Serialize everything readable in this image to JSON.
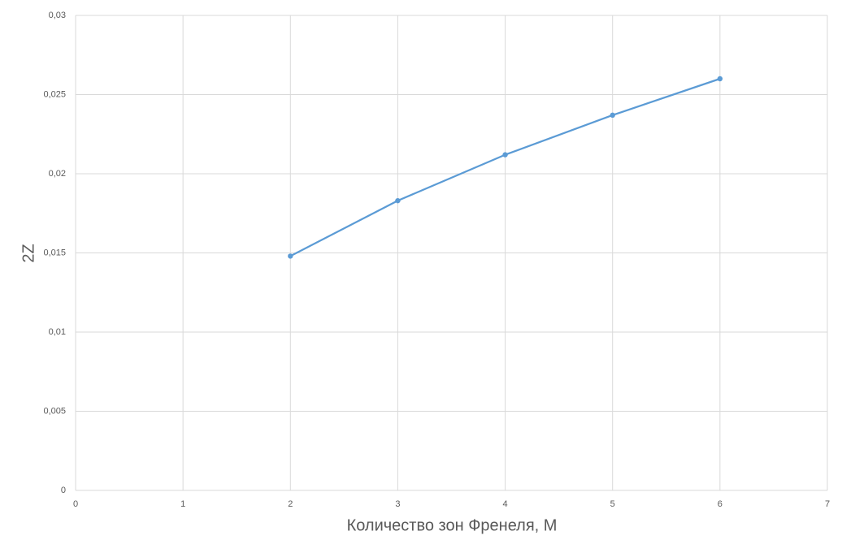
{
  "chart_data": {
    "type": "line",
    "x_label": "Количество зон Френеля, M",
    "y_label": "2Z",
    "x": [
      2,
      3,
      4,
      5,
      6
    ],
    "series": [
      {
        "color": "#5b9bd5",
        "values": [
          0.0148,
          0.0183,
          0.0212,
          0.0237,
          0.026
        ]
      }
    ],
    "xlim": [
      0,
      7
    ],
    "xticks": [
      0,
      1,
      2,
      3,
      4,
      5,
      6,
      7
    ],
    "ylim": [
      0,
      0.03
    ],
    "yticks": [
      0,
      {
        "value": 0.005,
        "label": "0,005"
      },
      {
        "value": 0.01,
        "label": "0,01"
      },
      {
        "value": 0.015,
        "label": "0,015"
      },
      {
        "value": 0.02,
        "label": "0,02"
      },
      {
        "value": 0.025,
        "label": "0,025"
      },
      {
        "value": 0.03,
        "label": "0,03"
      }
    ],
    "grid": true,
    "markers": true
  }
}
